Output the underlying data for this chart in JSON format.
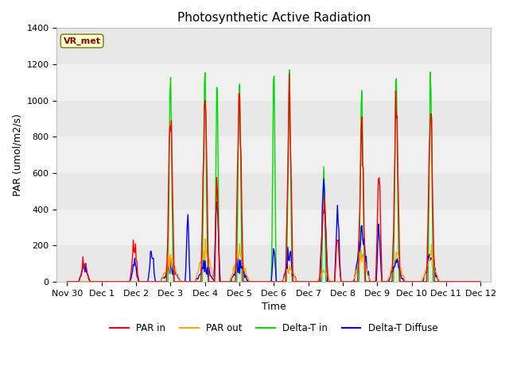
{
  "title": "Photosynthetic Active Radiation",
  "xlabel": "Time",
  "ylabel": "PAR (umol/m2/s)",
  "ylim": [
    0,
    1400
  ],
  "yticks": [
    0,
    200,
    400,
    600,
    800,
    1000,
    1200,
    1400
  ],
  "xtick_labels": [
    "Nov 30",
    "Dec 1",
    "Dec 2",
    "Dec 3",
    "Dec 4",
    "Dec 5",
    "Dec 6",
    "Dec 7",
    "Dec 8",
    "Dec 9",
    "Dec 10",
    "Dec 11",
    "Dec 12"
  ],
  "xtick_positions": [
    0,
    1,
    2,
    3,
    4,
    5,
    6,
    7,
    8,
    9,
    10,
    11,
    12
  ],
  "xlim": [
    -0.3,
    12.3
  ],
  "bg_color": "#ebebeb",
  "plot_bg": "#f0f0f0",
  "legend_label": "VR_met",
  "colors": {
    "PAR in": "#ff0000",
    "PAR out": "#ffa500",
    "Delta-T in": "#00dd00",
    "Delta-T Diffuse": "#0000ff"
  },
  "line_widths": {
    "PAR in": 1.0,
    "PAR out": 1.0,
    "Delta-T in": 1.0,
    "Delta-T Diffuse": 1.0
  }
}
